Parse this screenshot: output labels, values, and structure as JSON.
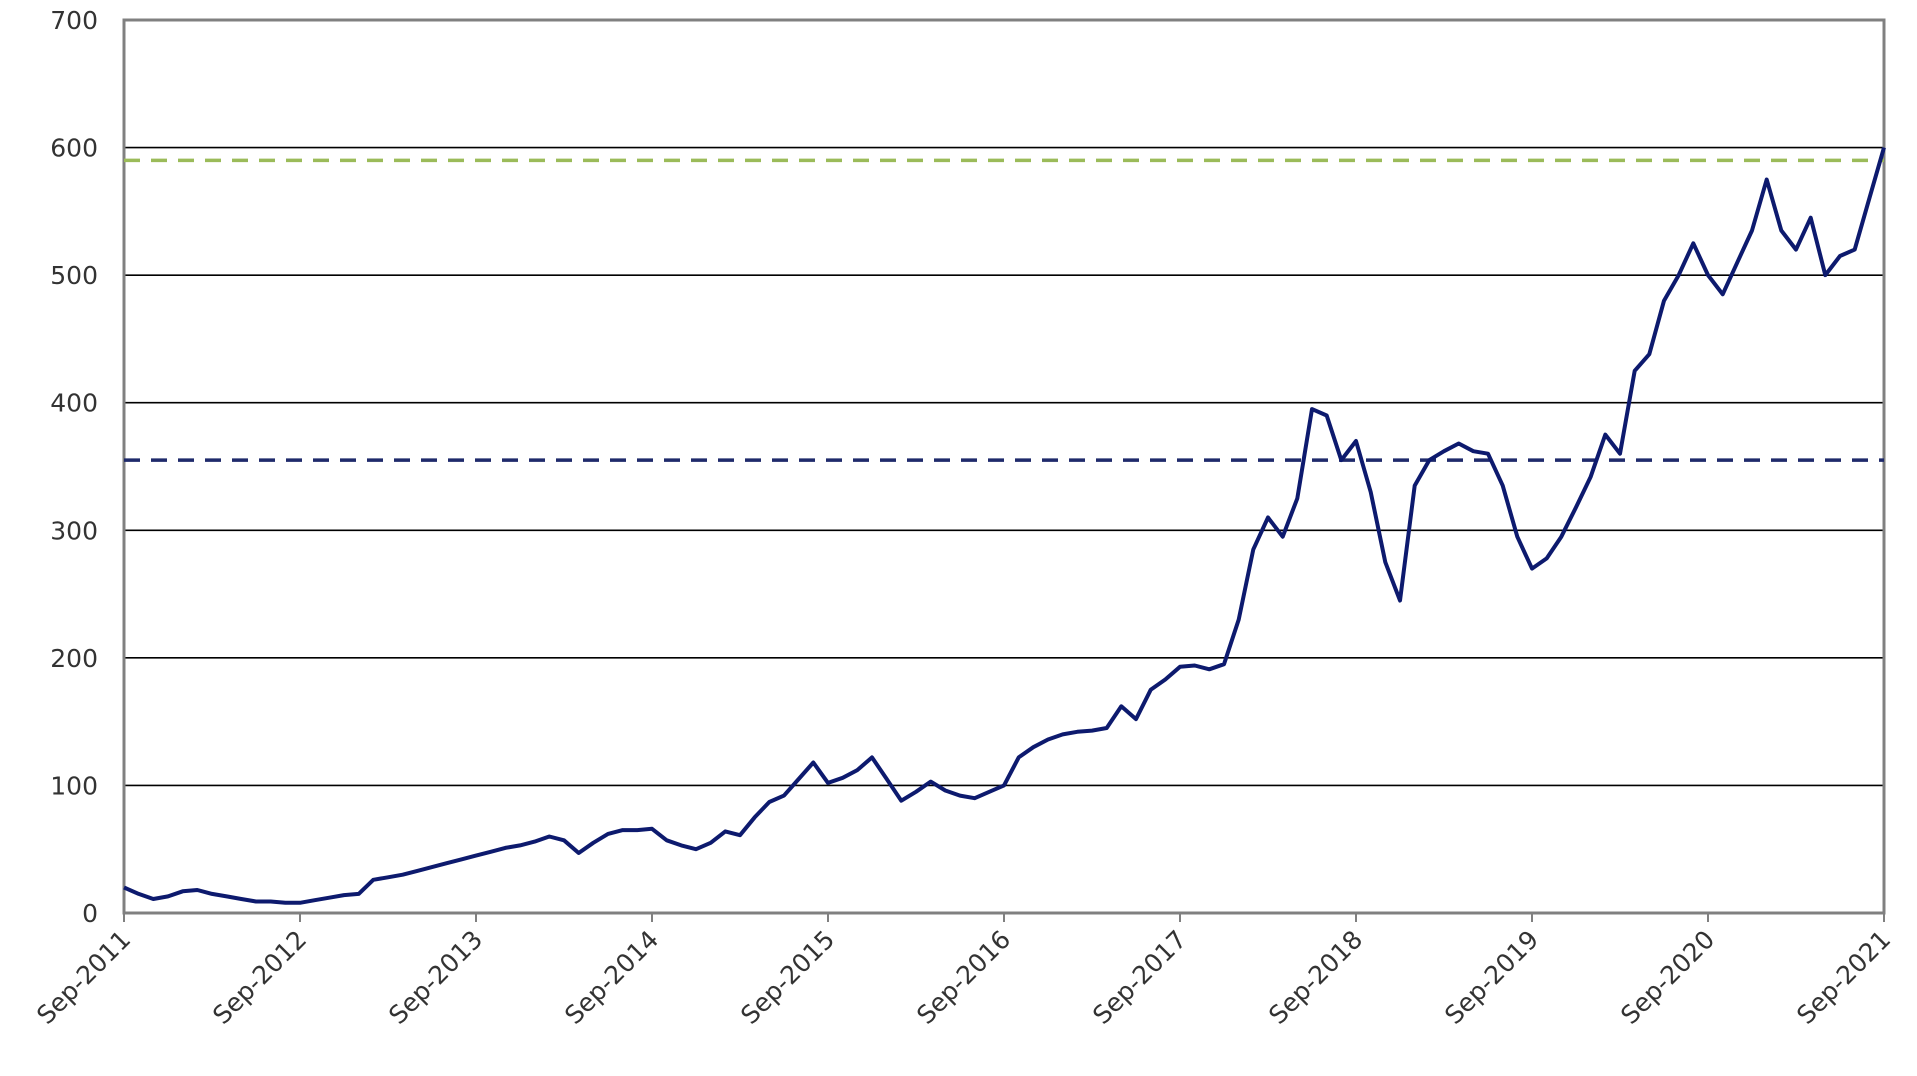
{
  "chart_data": {
    "type": "line",
    "x": [
      "2011-09",
      "2011-10",
      "2011-11",
      "2011-12",
      "2012-01",
      "2012-02",
      "2012-03",
      "2012-04",
      "2012-05",
      "2012-06",
      "2012-07",
      "2012-08",
      "2012-09",
      "2012-10",
      "2012-11",
      "2012-12",
      "2013-01",
      "2013-02",
      "2013-03",
      "2013-04",
      "2013-05",
      "2013-06",
      "2013-07",
      "2013-08",
      "2013-09",
      "2013-10",
      "2013-11",
      "2013-12",
      "2014-01",
      "2014-02",
      "2014-03",
      "2014-04",
      "2014-05",
      "2014-06",
      "2014-07",
      "2014-08",
      "2014-09",
      "2014-10",
      "2014-11",
      "2014-12",
      "2015-01",
      "2015-02",
      "2015-03",
      "2015-04",
      "2015-05",
      "2015-06",
      "2015-07",
      "2015-08",
      "2015-09",
      "2015-10",
      "2015-11",
      "2015-12",
      "2016-01",
      "2016-02",
      "2016-03",
      "2016-04",
      "2016-05",
      "2016-06",
      "2016-07",
      "2016-08",
      "2016-09",
      "2016-10",
      "2016-11",
      "2016-12",
      "2017-01",
      "2017-02",
      "2017-03",
      "2017-04",
      "2017-05",
      "2017-06",
      "2017-07",
      "2017-08",
      "2017-09",
      "2017-10",
      "2017-11",
      "2017-12",
      "2018-01",
      "2018-02",
      "2018-03",
      "2018-04",
      "2018-05",
      "2018-06",
      "2018-07",
      "2018-08",
      "2018-09",
      "2018-10",
      "2018-11",
      "2018-12",
      "2019-01",
      "2019-02",
      "2019-03",
      "2019-04",
      "2019-05",
      "2019-06",
      "2019-07",
      "2019-08",
      "2019-09",
      "2019-10",
      "2019-11",
      "2019-12",
      "2020-01",
      "2020-02",
      "2020-03",
      "2020-04",
      "2020-05",
      "2020-06",
      "2020-07",
      "2020-08",
      "2020-09",
      "2020-10",
      "2020-11",
      "2020-12",
      "2021-01",
      "2021-02",
      "2021-03",
      "2021-04",
      "2021-05",
      "2021-06",
      "2021-07",
      "2021-08",
      "2021-09"
    ],
    "values": [
      20,
      15,
      11,
      13,
      17,
      18,
      15,
      13,
      11,
      9,
      9,
      8,
      8,
      10,
      12,
      14,
      15,
      26,
      28,
      30,
      33,
      36,
      39,
      42,
      45,
      48,
      51,
      53,
      56,
      60,
      57,
      47,
      55,
      62,
      65,
      65,
      66,
      57,
      53,
      50,
      55,
      64,
      61,
      75,
      87,
      92,
      105,
      118,
      102,
      106,
      112,
      122,
      105,
      88,
      95,
      103,
      96,
      92,
      90,
      95,
      100,
      122,
      130,
      136,
      140,
      142,
      143,
      145,
      162,
      152,
      175,
      183,
      193,
      194,
      191,
      195,
      230,
      285,
      310,
      295,
      325,
      395,
      390,
      355,
      370,
      330,
      275,
      245,
      335,
      355,
      362,
      368,
      362,
      360,
      335,
      295,
      270,
      278,
      295,
      318,
      342,
      375,
      360,
      425,
      438,
      480,
      500,
      525,
      500,
      485,
      510,
      535,
      575,
      535,
      520,
      545,
      500,
      515,
      520,
      560,
      600
    ],
    "color": "#0d1a6e",
    "xlim": [
      "2011-09",
      "2021-09"
    ],
    "xticks": [
      {
        "value": "2011-09",
        "label": "Sep-2011"
      },
      {
        "value": "2012-09",
        "label": "Sep-2012"
      },
      {
        "value": "2013-09",
        "label": "Sep-2013"
      },
      {
        "value": "2014-09",
        "label": "Sep-2014"
      },
      {
        "value": "2015-09",
        "label": "Sep-2015"
      },
      {
        "value": "2016-09",
        "label": "Sep-2016"
      },
      {
        "value": "2017-09",
        "label": "Sep-2017"
      },
      {
        "value": "2018-09",
        "label": "Sep-2018"
      },
      {
        "value": "2019-09",
        "label": "Sep-2019"
      },
      {
        "value": "2020-09",
        "label": "Sep-2020"
      },
      {
        "value": "2021-09",
        "label": "Sep-2021"
      }
    ],
    "ylim": [
      0,
      700
    ],
    "yticks": [
      0,
      100,
      200,
      300,
      400,
      500,
      600,
      700
    ],
    "grid": true,
    "reference_lines": [
      {
        "value": 590,
        "color": "#9bbb59"
      },
      {
        "value": 355,
        "color": "#1f2a6b"
      }
    ]
  }
}
